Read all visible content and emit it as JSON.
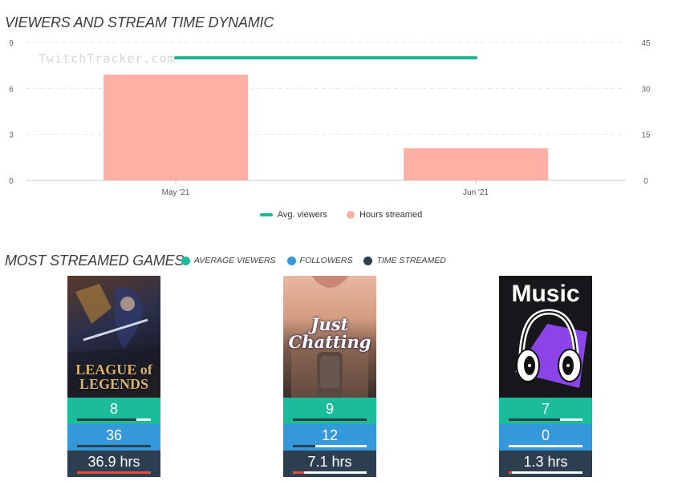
{
  "header": {
    "viewers_title": "VIEWERS AND STREAM TIME DYNAMIC",
    "games_title": "MOST STREAMED GAMES"
  },
  "watermark": "TwitchTracker.com",
  "chart_data": {
    "type": "bar",
    "categories": [
      "May '21",
      "Jun '21"
    ],
    "series": [
      {
        "name": "Hours streamed",
        "type": "bar",
        "axis": "left",
        "values": [
          6.9,
          2.1
        ],
        "color": "#ffb0a5"
      },
      {
        "name": "Avg. viewers",
        "type": "line",
        "axis": "right",
        "values": [
          40,
          40
        ],
        "color": "#1fb393"
      }
    ],
    "left_axis": {
      "ticks": [
        "0",
        "3",
        "6",
        "9"
      ],
      "ylim": [
        0,
        9
      ]
    },
    "right_axis": {
      "ticks": [
        "0",
        "15",
        "30",
        "45"
      ],
      "ylim": [
        0,
        45
      ]
    },
    "grid": true,
    "legend_placement": "bottom-center"
  },
  "games_legend": [
    {
      "label": "AVERAGE VIEWERS",
      "color": "#1abc9c"
    },
    {
      "label": "FOLLOWERS",
      "color": "#3498db"
    },
    {
      "label": "TIME STREAMED",
      "color": "#2c3e50"
    }
  ],
  "games": [
    {
      "cover_text": "LEAGUE of LEGENDS",
      "avg_viewers": "8",
      "avg_viewers_fill": 0.8,
      "followers": "36",
      "followers_fill": 1.0,
      "time": "36.9 hrs",
      "time_fill": 1.0
    },
    {
      "cover_text": "Just Chatting",
      "avg_viewers": "9",
      "avg_viewers_fill": 1.0,
      "followers": "12",
      "followers_fill": 0.3,
      "time": "7.1 hrs",
      "time_fill": 0.15
    },
    {
      "cover_text": "Music",
      "avg_viewers": "7",
      "avg_viewers_fill": 0.7,
      "followers": "0",
      "followers_fill": 0.0,
      "time": "1.3 hrs",
      "time_fill": 0.04
    }
  ],
  "colors": {
    "avg": "#1abc9c",
    "followers": "#3498db",
    "time": "#2c3e50",
    "time_bar": "#e74c3c",
    "dark_bar": "#2c3e50"
  }
}
